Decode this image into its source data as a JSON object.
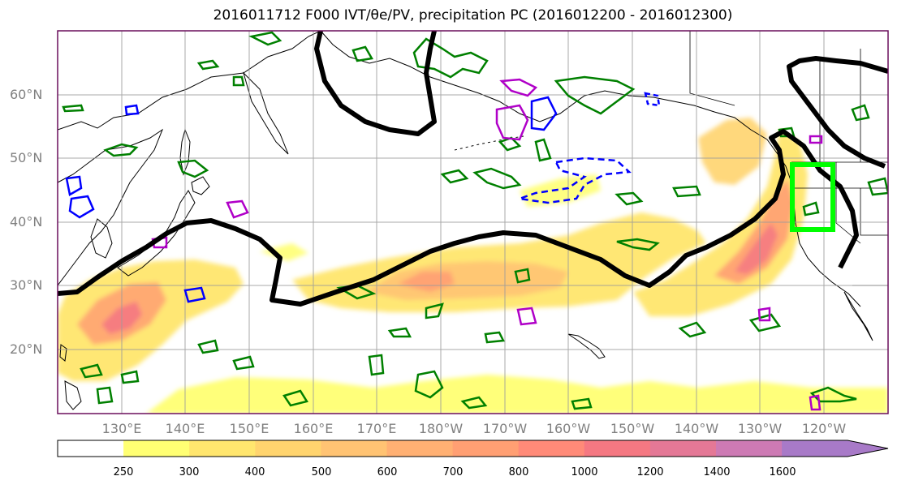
{
  "title": "2016011712 F000 IVT/θe/PV, precipitation PC (2016012200 - 2016012300)",
  "lat_labels": [
    "60°N",
    "50°N",
    "40°N",
    "30°N",
    "20°N"
  ],
  "lon_labels": [
    "130°E",
    "140°E",
    "150°E",
    "160°E",
    "170°E",
    "180°W",
    "170°W",
    "160°W",
    "150°W",
    "140°W",
    "130°W",
    "120°W"
  ],
  "colorbar": {
    "labels": [
      "250",
      "300",
      "400",
      "500",
      "600",
      "700",
      "800",
      "1000",
      "1200",
      "1400",
      "1600"
    ],
    "colors": [
      "#ffff73",
      "#ffe66e",
      "#ffd46e",
      "#ffc373",
      "#ffb073",
      "#ff9f73",
      "#ff8a78",
      "#f57882",
      "#e47896",
      "#cd7ab4",
      "#a87ac8"
    ]
  },
  "colors": {
    "ivt_contour": "#000000",
    "theta_e_contour": "#008000",
    "pv_positive": "#b000c8",
    "pv_negative": "#0000ff",
    "target_box": "#00ff00"
  }
}
